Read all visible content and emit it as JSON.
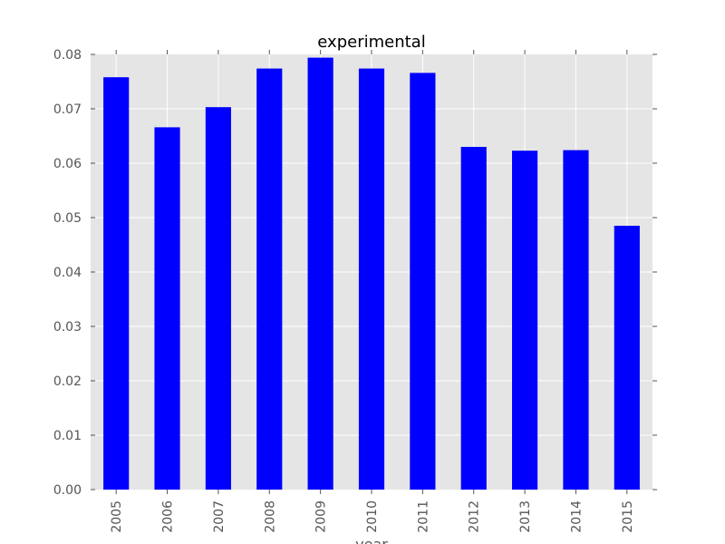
{
  "chart_data": {
    "type": "bar",
    "title": "experimental",
    "xlabel": "year",
    "ylabel": "",
    "categories": [
      "2005",
      "2006",
      "2007",
      "2008",
      "2009",
      "2010",
      "2011",
      "2012",
      "2013",
      "2014",
      "2015"
    ],
    "values": [
      0.0758,
      0.0666,
      0.0703,
      0.0774,
      0.0794,
      0.0774,
      0.0766,
      0.063,
      0.0623,
      0.0624,
      0.0485
    ],
    "ylim": [
      0,
      0.08
    ],
    "yticks": [
      "0.00",
      "0.01",
      "0.02",
      "0.03",
      "0.04",
      "0.05",
      "0.06",
      "0.07",
      "0.08"
    ],
    "grid": true,
    "legend": "none",
    "colors": {
      "bar": "#0000ff",
      "plot_background": "#e5e5e5",
      "grid": "#ffffff",
      "tick_text": "#555555",
      "title_text": "#000000"
    }
  }
}
